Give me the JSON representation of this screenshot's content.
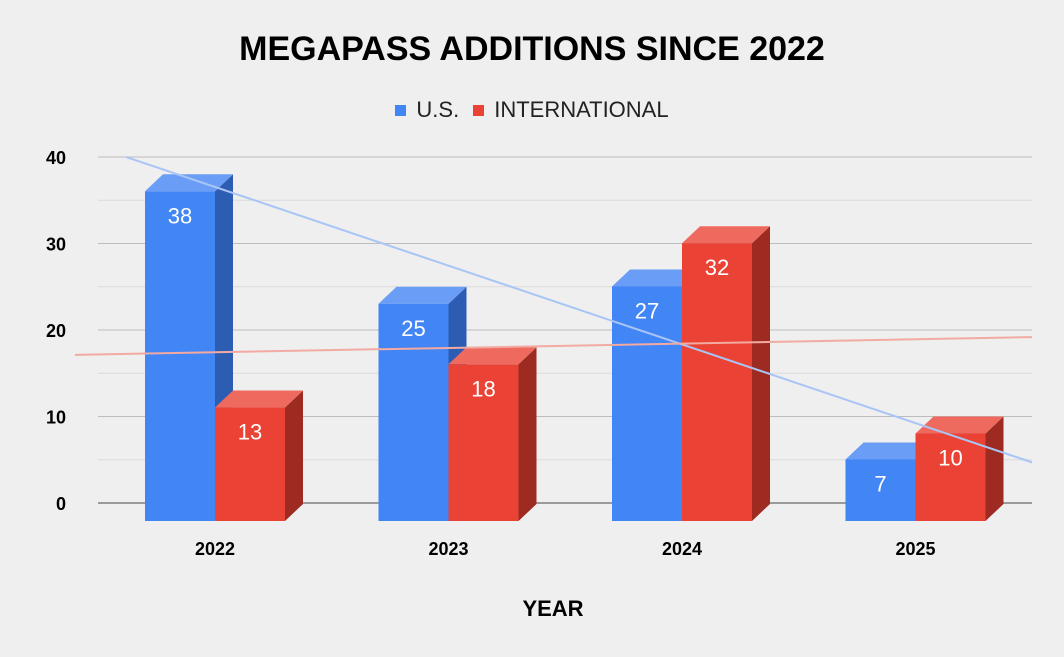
{
  "chart_data": {
    "type": "bar",
    "title": "MEGAPASS ADDITIONS SINCE 2022",
    "xlabel": "YEAR",
    "ylabel": "",
    "categories": [
      "2022",
      "2023",
      "2024",
      "2025"
    ],
    "series": [
      {
        "name": "U.S.",
        "values": [
          38,
          25,
          27,
          7
        ],
        "color": "#4285f4",
        "side_color": "#2d5db3",
        "top_color": "#6a9ef6"
      },
      {
        "name": "INTERNATIONAL",
        "values": [
          13,
          18,
          32,
          10
        ],
        "color": "#ea4335",
        "side_color": "#9e2b22",
        "top_color": "#ef6a5e"
      }
    ],
    "ylim": [
      0,
      40
    ],
    "yticks": [
      "0",
      "10",
      "20",
      "30",
      "40"
    ],
    "grid": true,
    "legend_position": "top",
    "trendlines": [
      {
        "series": "U.S.",
        "color": "#a9c5f6"
      },
      {
        "series": "INTERNATIONAL",
        "color": "#f2aaa3"
      }
    ]
  }
}
